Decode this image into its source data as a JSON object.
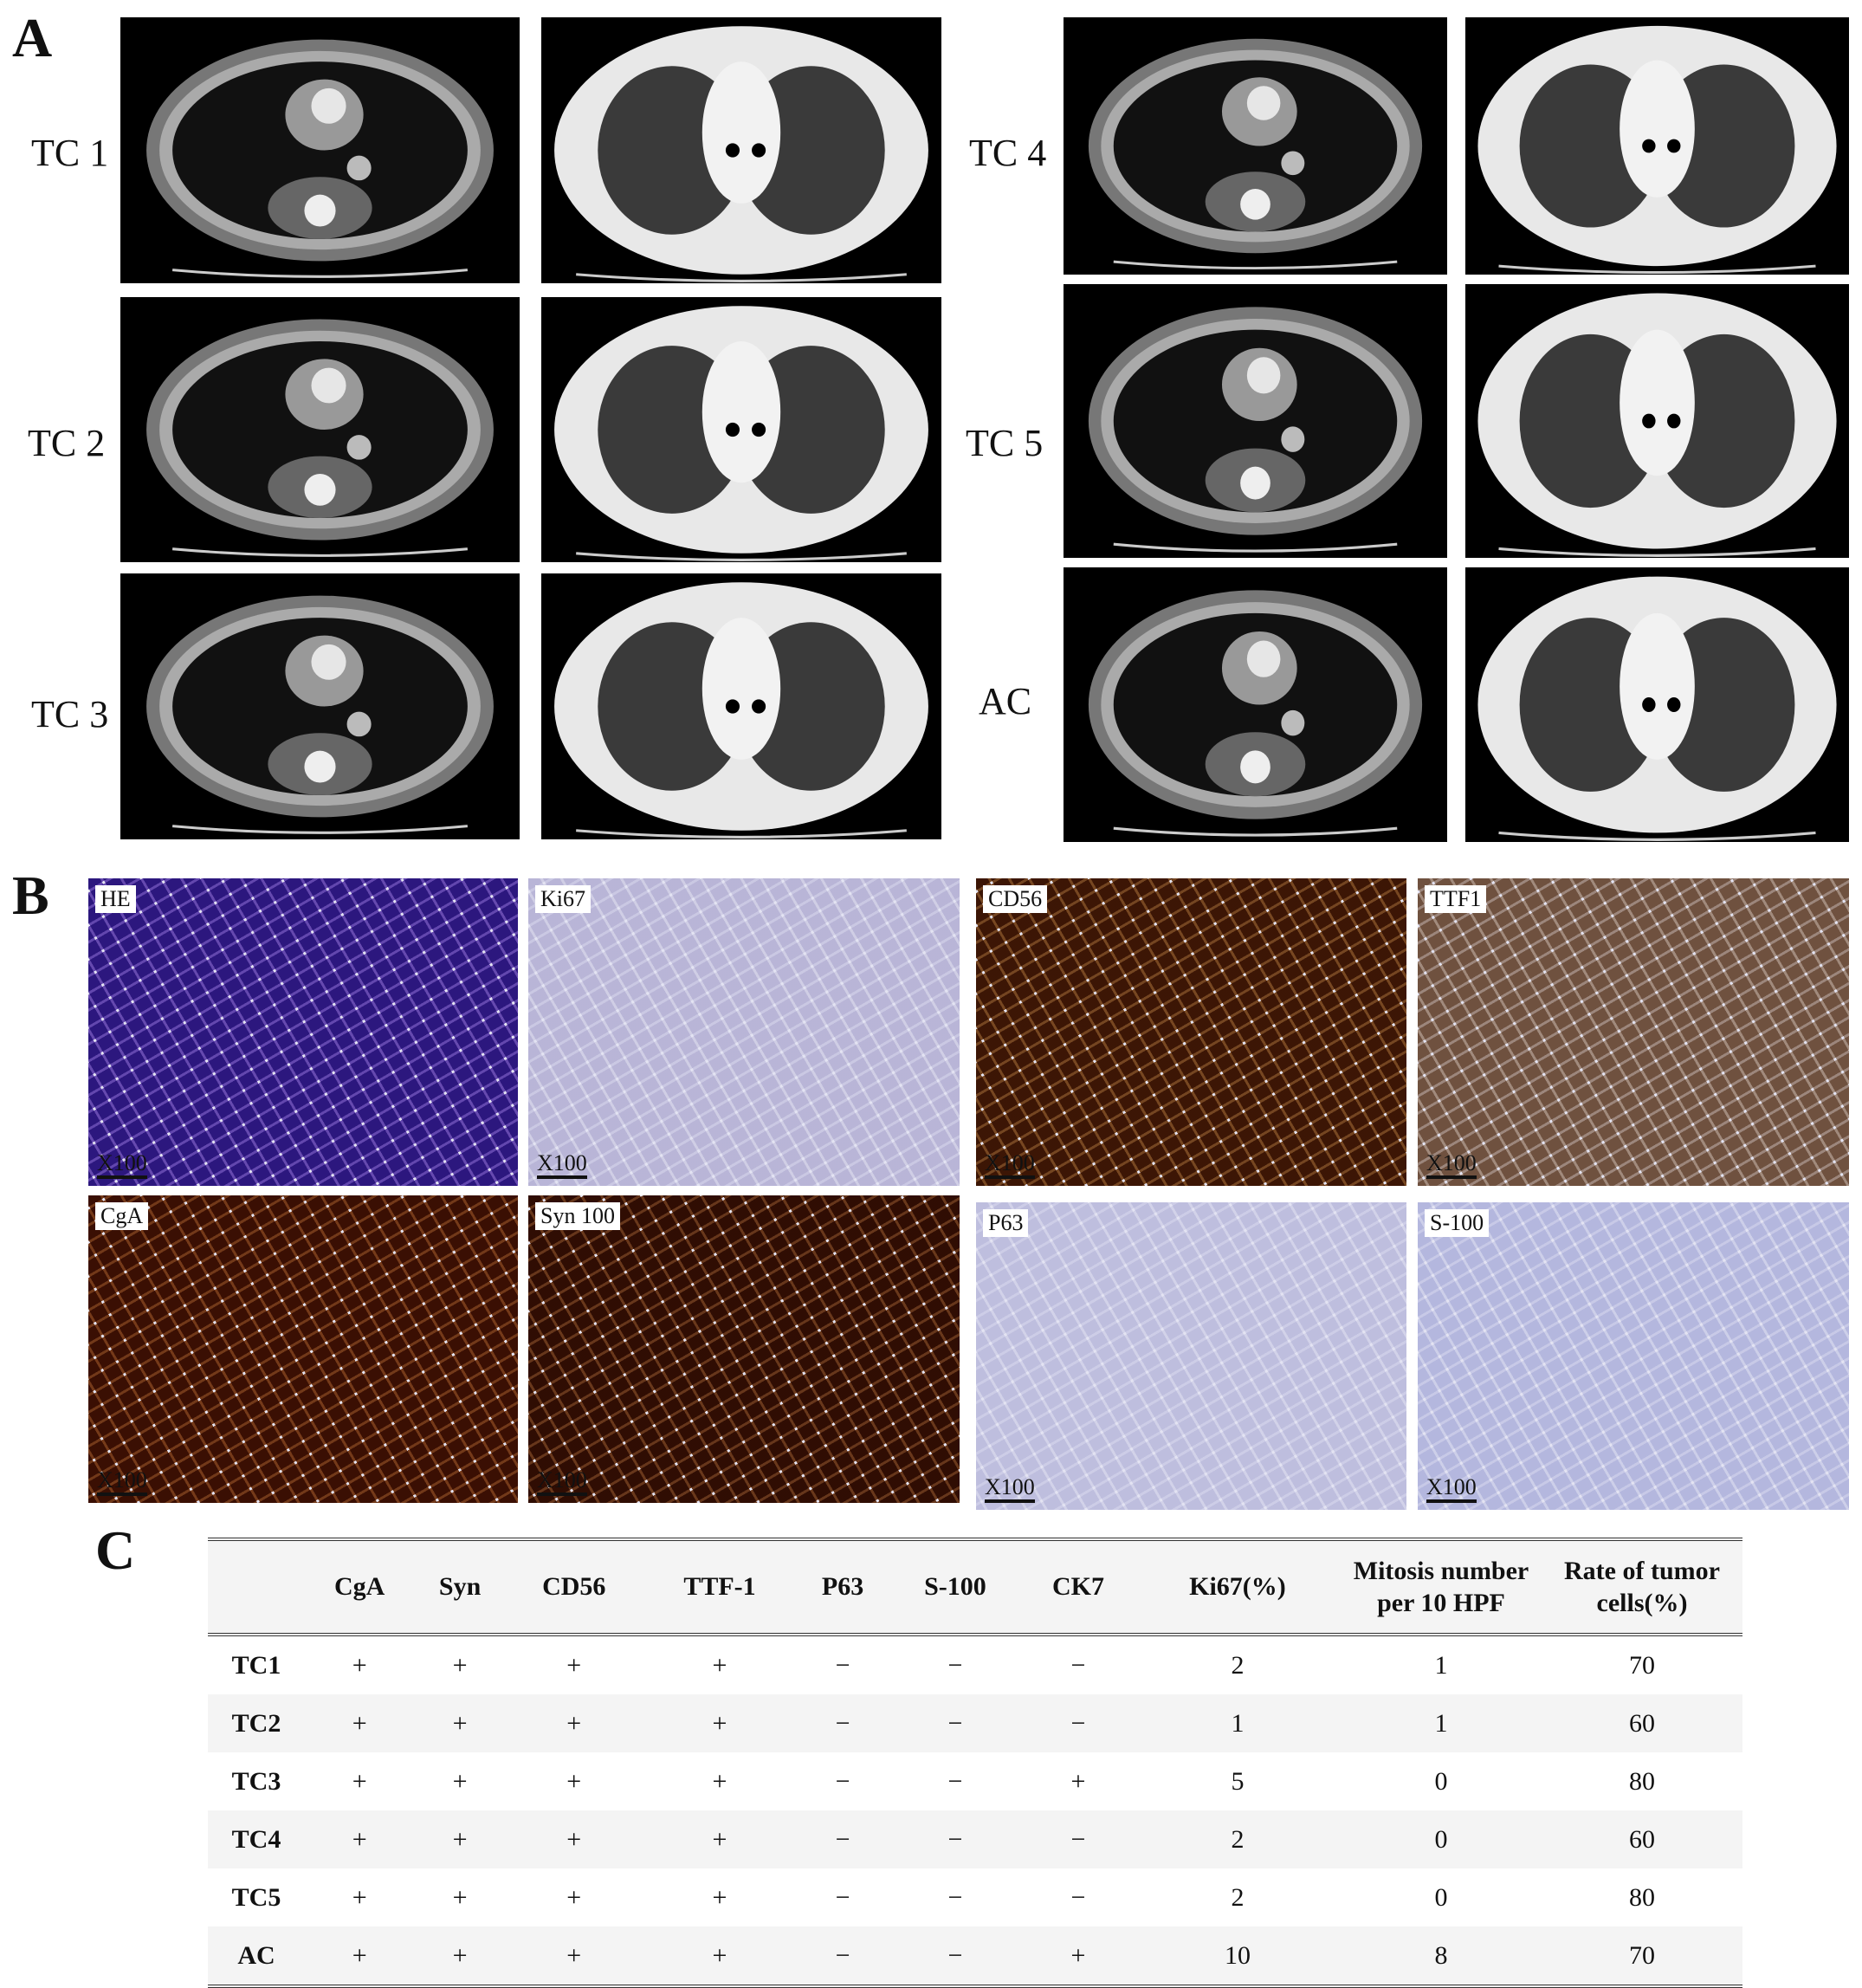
{
  "panels": {
    "a": "A",
    "b": "B",
    "c": "C"
  },
  "ct_cases": [
    {
      "label": "TC 1"
    },
    {
      "label": "TC 2"
    },
    {
      "label": "TC 3"
    },
    {
      "label": "TC 4"
    },
    {
      "label": "TC 5"
    },
    {
      "label": "AC"
    }
  ],
  "stains": [
    {
      "label": "HE",
      "scale": "X100",
      "color": "#6a4cb3"
    },
    {
      "label": "Ki67",
      "scale": "X100",
      "color": "#d9d7ea"
    },
    {
      "label": "CD56",
      "scale": "X100",
      "color": "#7c4a22"
    },
    {
      "label": "TTF1",
      "scale": "X100",
      "color": "#a8907f"
    },
    {
      "label": "CgA",
      "scale": "X100",
      "color": "#7a3d1a"
    },
    {
      "label": "Syn 100",
      "scale": "X100",
      "color": "#6e3a1c"
    },
    {
      "label": "P63",
      "scale": "X100",
      "color": "#dcdcee"
    },
    {
      "label": "S-100",
      "scale": "X100",
      "color": "#d6d8ee"
    }
  ],
  "table": {
    "headers": [
      "",
      "CgA",
      "Syn",
      "CD56",
      "TTF-1",
      "P63",
      "S-100",
      "CK7",
      "Ki67(%)",
      "Mitosis number per 10 HPF",
      "Rate of tumor cells(%)"
    ],
    "rows": [
      [
        "TC1",
        "+",
        "+",
        "+",
        "+",
        "−",
        "−",
        "−",
        "2",
        "1",
        "70"
      ],
      [
        "TC2",
        "+",
        "+",
        "+",
        "+",
        "−",
        "−",
        "−",
        "1",
        "1",
        "60"
      ],
      [
        "TC3",
        "+",
        "+",
        "+",
        "+",
        "−",
        "−",
        "+",
        "5",
        "0",
        "80"
      ],
      [
        "TC4",
        "+",
        "+",
        "+",
        "+",
        "−",
        "−",
        "−",
        "2",
        "0",
        "60"
      ],
      [
        "TC5",
        "+",
        "+",
        "+",
        "+",
        "−",
        "−",
        "−",
        "2",
        "0",
        "80"
      ],
      [
        "AC",
        "+",
        "+",
        "+",
        "+",
        "−",
        "−",
        "+",
        "10",
        "8",
        "70"
      ]
    ]
  }
}
